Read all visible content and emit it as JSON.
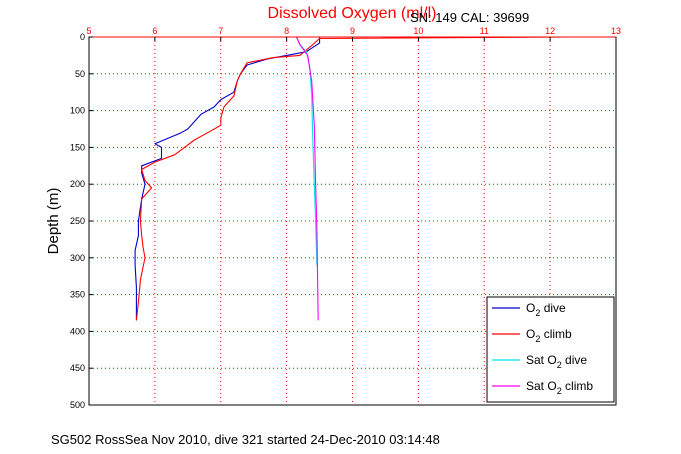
{
  "chart_data": {
    "type": "line",
    "title": "Dissolved Oxygen (ml/l)",
    "subtitle": "SN: 149  CAL: 39699",
    "ylabel": "Depth (m)",
    "footer": "SG502 RossSea Nov 2010, dive 321 started 24-Dec-2010 03:14:48",
    "xlim": [
      5,
      13
    ],
    "ylim": [
      0,
      500
    ],
    "y_reversed": true,
    "x_axis_position": "top",
    "x_ticks": [
      "5",
      "6",
      "7",
      "8",
      "9",
      "10",
      "11",
      "12",
      "13"
    ],
    "y_ticks": [
      "0",
      "50",
      "100",
      "150",
      "200",
      "250",
      "300",
      "350",
      "400",
      "450",
      "500"
    ],
    "grid": true,
    "legend_position": "bottom-right",
    "colors": {
      "o2_dive": "#0000cc",
      "o2_climb": "#ff0000",
      "sat_dive": "#00e5e5",
      "sat_climb": "#ff00ff",
      "grid": "#ff0000"
    },
    "series": [
      {
        "name": "O2 dive",
        "legend_base": "O",
        "legend_sub": "2",
        "legend_suffix": " dive",
        "x": [
          8.5,
          8.5,
          8.3,
          8.0,
          7.7,
          7.4,
          7.3,
          7.25,
          7.2,
          7.0,
          6.9,
          6.7,
          6.5,
          6.4,
          6.0,
          6.1,
          6.1,
          5.8,
          5.8,
          5.85,
          5.8,
          5.75,
          5.75,
          5.7,
          5.7,
          5.72,
          5.72,
          5.72
        ],
        "y": [
          0,
          8,
          20,
          25,
          30,
          38,
          50,
          60,
          75,
          85,
          95,
          105,
          125,
          130,
          145,
          150,
          165,
          175,
          185,
          200,
          220,
          250,
          270,
          290,
          310,
          340,
          370,
          385
        ]
      },
      {
        "name": "O2 climb",
        "legend_base": "O",
        "legend_sub": "2",
        "legend_suffix": " climb",
        "x": [
          12.3,
          8.5,
          8.4,
          8.2,
          7.8,
          7.4,
          7.3,
          7.25,
          7.2,
          7.05,
          7.0,
          7.0,
          6.8,
          6.6,
          6.45,
          6.3,
          6.0,
          5.8,
          5.85,
          5.95,
          5.8,
          5.78,
          5.8,
          5.82,
          5.85,
          5.78,
          5.75,
          5.72
        ],
        "y": [
          0,
          2,
          10,
          25,
          28,
          35,
          50,
          60,
          80,
          95,
          110,
          120,
          130,
          140,
          150,
          160,
          170,
          180,
          195,
          205,
          220,
          250,
          270,
          285,
          300,
          330,
          360,
          385
        ]
      },
      {
        "name": "Sat O2 dive",
        "legend_base": "Sat O",
        "legend_sub": "2",
        "legend_suffix": " dive",
        "x": [
          8.15,
          8.2,
          8.3,
          8.35,
          8.38,
          8.4,
          8.42,
          8.44,
          8.46
        ],
        "y": [
          0,
          10,
          20,
          40,
          80,
          150,
          200,
          250,
          310
        ]
      },
      {
        "name": "Sat O2 climb",
        "legend_base": "Sat O",
        "legend_sub": "2",
        "legend_suffix": " climb",
        "x": [
          8.15,
          8.2,
          8.32,
          8.38,
          8.42,
          8.44,
          8.46,
          8.47,
          8.48
        ],
        "y": [
          0,
          10,
          25,
          60,
          120,
          200,
          260,
          330,
          385
        ]
      }
    ]
  }
}
